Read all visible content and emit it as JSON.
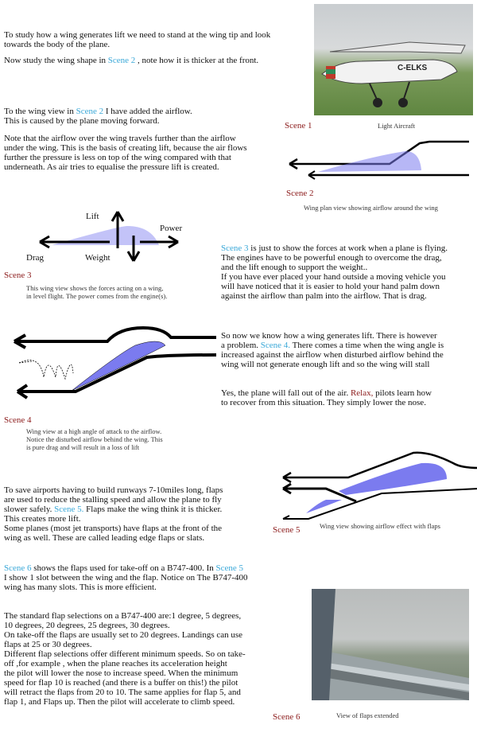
{
  "colors": {
    "link": "#3aa8d8",
    "scene_label": "#8b1a1a",
    "wing_fill": "#7b7bef"
  },
  "intro": {
    "l1": "To study how a wing generates lift we need to stand at the wing tip and look",
    "l2": "towards the body of the plane."
  },
  "shape": {
    "pre": "Now study the wing shape in ",
    "link": "Scene 2",
    "post": " , note how it is thicker at the front."
  },
  "airflow": {
    "pre": "To the wing view in ",
    "link": "Scene 2",
    "post": "  I have added the airflow.",
    "l2": "This is caused by the plane moving forward."
  },
  "note": [
    "Note that the airflow over the wing travels further than the airflow",
    "under the wing. This is the basis of creating lift, because the air flows",
    "further the pressure is less on top of the wing compared with that",
    "underneath.  As air tries to equalise the pressure lift is created."
  ],
  "scene1": {
    "label": "Scene 1",
    "caption": "Light Aircraft",
    "registration": "C-ELKS"
  },
  "scene2": {
    "label": "Scene 2",
    "caption": "Wing plan view showing airflow around the wing"
  },
  "scene3": {
    "label": "Scene 3",
    "caption": [
      "This wing view shows the forces acting on a wing,",
      "in level flight.  The power comes from the engine(s)."
    ],
    "forces": {
      "lift": "Lift",
      "power": "Power",
      "drag": "Drag",
      "weight": "Weight"
    }
  },
  "forces_text": {
    "link": "Scene 3",
    "post": " is just to show the forces at work when a plane is flying.",
    "lines": [
      "The engines have to be powerful enough to overcome the drag,",
      "and the  lift  enough to support the weight..",
      "If you have ever placed your hand outside a moving vehicle you",
      "will have noticed that it is easier to hold your hand palm down",
      "against the airflow than palm into the airflow.  That is drag."
    ]
  },
  "stall_text": {
    "l1": "So now we know how a wing generates lift. There is however",
    "pre": "a problem. ",
    "link": "Scene 4.",
    "post": " There comes a time when the wing angle is",
    "l3": "increased against the airflow when disturbed airflow behind the",
    "l4": "wing will not generate enough lift and so the wing will stall"
  },
  "relax_text": {
    "pre": "Yes, the plane will fall out of the air. ",
    "relax": "Relax,",
    "post": " pilots learn how",
    "l2": "to recover from this situation. They simply lower the nose."
  },
  "scene4": {
    "label": "Scene 4",
    "caption": [
      "Wing view at a high angle of attack to the airflow.",
      "Notice the disturbed airflow behind the wing.  This",
      "is pure drag and will result in a loss of lift"
    ]
  },
  "flaps_text": {
    "l1": "To save airports having to build runways 7-10miles long, flaps",
    "l2": "are used to reduce the stalling speed and allow the plane to fly",
    "pre": "slower safely. ",
    "link": "Scene 5.",
    "post": " Flaps make the wing think it is thicker.",
    "l4": "This creates more lift.",
    "l5": "Some planes (most jet transports) have flaps at the front of the",
    "l6": "wing as well. These are called leading edge flaps or slats."
  },
  "scene5": {
    "label": "Scene 5",
    "caption": "Wing view showing airflow effect with flaps"
  },
  "slots_text": {
    "link1": "Scene 6",
    "mid": " shows the flaps used for take-off on a B747-400.  In ",
    "link2": "Scene 5",
    "l2": "I show 1 slot between the wing and the flap.  Notice on The B747-400",
    "l3": "wing has many slots.  This is more efficient."
  },
  "standard_text": [
    "The standard flap selections on a B747-400 are:1 degree, 5 degrees,",
    "10 degrees, 20 degrees, 25 degrees, 30 degrees.",
    "On take-off the flaps are usually set to 20 degrees. Landings can use",
    "flaps at 25 or 30 degrees.",
    "Different flap selections offer different minimum speeds.  So on take-",
    "off ,for example , when the plane reaches its acceleration height",
    "the pilot will lower the nose to increase speed.  When the minimum",
    "speed for flap 10 is reached (and there is a buffer on this!) the pilot",
    "will retract the flaps from 20 to 10.  The same applies for flap 5, and",
    "flap 1, and Flaps up.  Then the pilot will accelerate to climb  speed."
  ],
  "scene6": {
    "label": "Scene 6",
    "caption": "View of  flaps extended"
  }
}
